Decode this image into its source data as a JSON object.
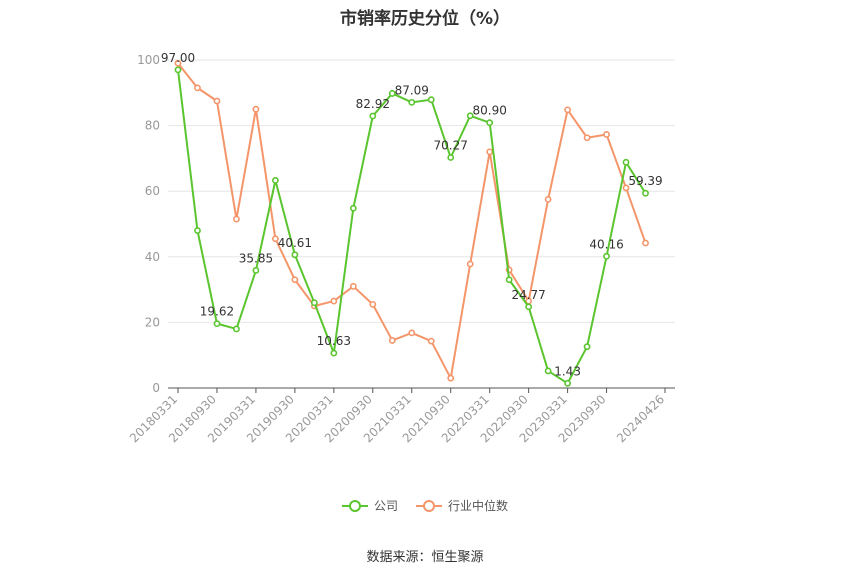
{
  "title": "市销率历史分位（%）",
  "source": "数据来源：恒生聚源",
  "legend": {
    "company": "公司",
    "industry": "行业中位数"
  },
  "colors": {
    "company": "#5ac52e",
    "industry": "#f4956a",
    "axis": "#555555",
    "grid": "#e6e6e6",
    "tick_text": "#999999",
    "label_text": "#333333"
  },
  "chart_data": {
    "type": "line",
    "title": "市销率历史分位（%）",
    "ylim": [
      0,
      100
    ],
    "yticks": [
      0,
      20,
      40,
      60,
      80,
      100
    ],
    "x_tick_labels": [
      "20180331",
      "20180930",
      "20190331",
      "20190930",
      "20200331",
      "20200930",
      "20210331",
      "20210930",
      "20220331",
      "20220930",
      "20230331",
      "20230930",
      "20240426"
    ],
    "x": [
      "20180331",
      "20180630",
      "20180930",
      "20181231",
      "20190331",
      "20190630",
      "20190930",
      "20191231",
      "20200331",
      "20200630",
      "20200930",
      "20201231",
      "20210331",
      "20210630",
      "20210930",
      "20211231",
      "20220331",
      "20220630",
      "20220930",
      "20221231",
      "20230331",
      "20230630",
      "20230930",
      "20231231",
      "20240331",
      "20240426"
    ],
    "series": [
      {
        "name": "公司",
        "values": [
          97.0,
          48.0,
          19.62,
          18.0,
          35.85,
          63.3,
          40.61,
          26.0,
          10.63,
          54.8,
          82.92,
          89.8,
          87.09,
          87.9,
          70.27,
          83.0,
          80.9,
          33.0,
          24.77,
          5.2,
          1.43,
          12.6,
          40.16,
          68.8,
          59.39,
          null
        ],
        "labels": {
          "0": "97.00",
          "2": "19.62",
          "4": "35.85",
          "6": "40.61",
          "8": "10.63",
          "10": "82.92",
          "12": "87.09",
          "14": "70.27",
          "16": "80.90",
          "18": "24.77",
          "20": "1.43",
          "22": "40.16",
          "24": "59.39"
        }
      },
      {
        "name": "行业中位数",
        "values": [
          99.0,
          91.5,
          87.5,
          51.5,
          85.0,
          45.5,
          33.0,
          25.0,
          26.5,
          31.0,
          25.5,
          14.5,
          16.8,
          14.3,
          3.0,
          37.8,
          72.0,
          36.0,
          26.5,
          57.5,
          84.8,
          76.3,
          77.3,
          61.0,
          44.2,
          null
        ]
      }
    ]
  }
}
